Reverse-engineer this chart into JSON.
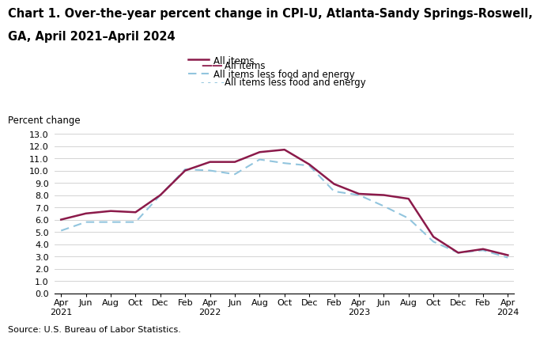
{
  "title_line1": "Chart 1. Over-the-year percent change in CPI-U, Atlanta-Sandy Springs-Roswell,",
  "title_line2": "GA, April 2021–April 2024",
  "ylabel": "Percent change",
  "source": "Source: U.S. Bureau of Labor Statistics.",
  "tick_labels": [
    "Apr\n2021",
    "Jun",
    "Aug",
    "Oct",
    "Dec",
    "Feb",
    "Apr\n2022",
    "Jun",
    "Aug",
    "Oct",
    "Dec",
    "Feb",
    "Apr\n2023",
    "Jun",
    "Aug",
    "Oct",
    "Dec",
    "Feb",
    "Apr\n2024"
  ],
  "all_items_label": "All items",
  "all_items_color": "#8B1A4A",
  "all_items_linewidth": 1.8,
  "x_all": [
    0,
    2,
    4,
    6,
    8,
    10,
    12,
    14,
    16,
    18,
    20,
    22,
    24,
    26,
    28,
    30,
    32,
    34,
    36
  ],
  "y_all": [
    6.0,
    6.5,
    6.7,
    6.6,
    8.0,
    10.0,
    10.7,
    10.7,
    11.5,
    11.7,
    10.5,
    8.9,
    8.1,
    8.0,
    7.7,
    4.6,
    3.3,
    3.6,
    3.1
  ],
  "all_less_label": "All items less food and energy",
  "all_less_color": "#92C5DE",
  "all_less_linewidth": 1.5,
  "x_less": [
    0,
    2,
    4,
    6,
    8,
    10,
    12,
    14,
    16,
    18,
    20,
    22,
    24,
    26,
    28,
    30,
    32,
    34,
    36
  ],
  "y_less": [
    5.1,
    5.8,
    5.8,
    5.8,
    8.0,
    10.1,
    10.0,
    9.7,
    10.9,
    10.6,
    10.4,
    8.3,
    8.0,
    7.1,
    6.1,
    4.2,
    3.3,
    3.5,
    2.9
  ],
  "ylim": [
    0.0,
    13.0
  ],
  "yticks": [
    0.0,
    1.0,
    2.0,
    3.0,
    4.0,
    5.0,
    6.0,
    7.0,
    8.0,
    9.0,
    10.0,
    11.0,
    12.0,
    13.0
  ],
  "grid_color": "#cccccc",
  "tick_fontsize": 8.0,
  "ylabel_fontsize": 8.5,
  "title_fontsize": 10.5,
  "legend_fontsize": 8.5,
  "source_fontsize": 8.0
}
